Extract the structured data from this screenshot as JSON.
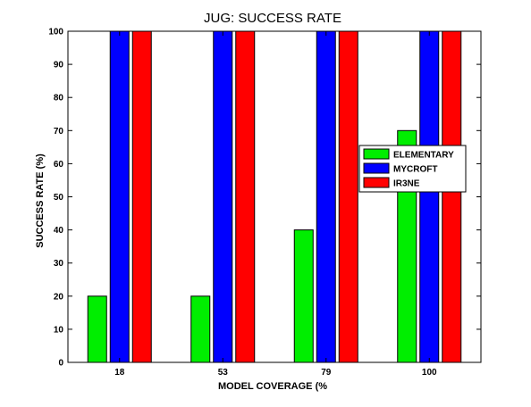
{
  "chart_data": {
    "type": "bar",
    "title": "JUG: SUCCESS RATE",
    "xlabel": "MODEL COVERAGE (%",
    "ylabel": "SUCCESS RATE (%)",
    "categories": [
      "18",
      "53",
      "79",
      "100"
    ],
    "ylim": [
      0,
      100
    ],
    "yticks": [
      0,
      10,
      20,
      30,
      40,
      50,
      60,
      70,
      80,
      90,
      100
    ],
    "grid": false,
    "legend_position": "center-right",
    "series": [
      {
        "name": "ELEMENTARY",
        "color": "#00ee00",
        "values": [
          20,
          20,
          40,
          70
        ]
      },
      {
        "name": "MYCROFT",
        "color": "#0000ff",
        "values": [
          100,
          100,
          100,
          100
        ]
      },
      {
        "name": "IR3NE",
        "color": "#ff0000",
        "values": [
          100,
          100,
          100,
          100
        ]
      }
    ]
  }
}
